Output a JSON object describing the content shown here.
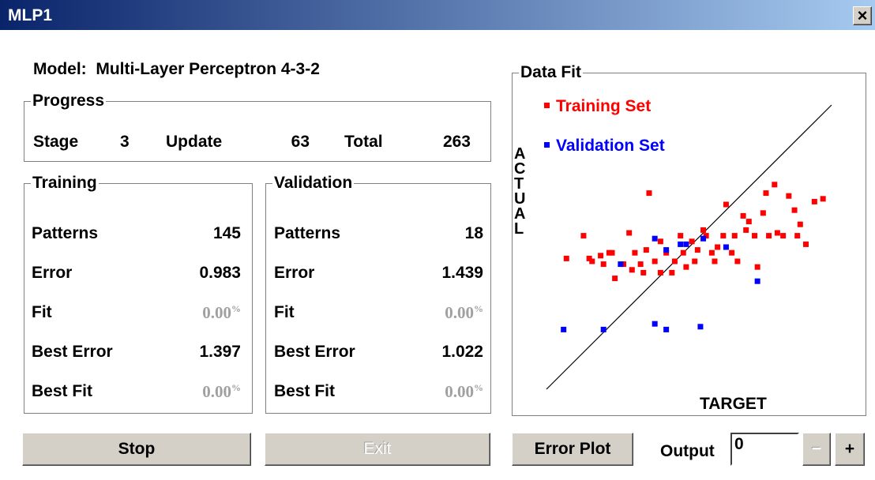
{
  "window": {
    "title": "MLP1",
    "close": "×"
  },
  "model": {
    "label": "Model:",
    "name": "Multi-Layer Perceptron 4-3-2"
  },
  "progress": {
    "title": "Progress",
    "stage_label": "Stage",
    "stage": "3",
    "update_label": "Update",
    "update": "63",
    "total_label": "Total",
    "total": "263"
  },
  "training": {
    "title": "Training",
    "rows": [
      [
        "Patterns",
        "145"
      ],
      [
        "Error",
        "0.983"
      ],
      [
        "Fit",
        "0.00",
        "%"
      ],
      [
        "Best Error",
        "1.397"
      ],
      [
        "Best Fit",
        "0.00",
        "%"
      ]
    ]
  },
  "validation": {
    "title": "Validation",
    "rows": [
      [
        "Patterns",
        "18"
      ],
      [
        "Error",
        "1.439"
      ],
      [
        "Fit",
        "0.00",
        "%"
      ],
      [
        "Best Error",
        "1.022"
      ],
      [
        "Best Fit",
        "0.00",
        "%"
      ]
    ]
  },
  "chart_data": {
    "type": "scatter",
    "title": "Data Fit",
    "x_label": "TARGET",
    "y_label": "ACTUAL",
    "xlim": [
      0,
      100
    ],
    "ylim": [
      0,
      100
    ],
    "series": [
      {
        "name": "Training Set",
        "color": "#ff0000",
        "x": [
          7,
          13,
          15,
          16,
          19,
          20,
          22,
          23,
          24,
          27,
          29,
          30,
          31,
          33,
          34,
          35,
          36,
          38,
          40,
          40,
          42,
          44,
          45,
          47,
          48,
          49,
          51,
          52,
          53,
          55,
          56,
          58,
          59,
          60,
          62,
          63,
          65,
          66,
          67,
          69,
          70,
          71,
          73,
          74,
          76,
          77,
          78,
          80,
          81,
          83,
          85,
          87,
          88,
          89,
          91,
          94,
          97
        ],
        "values": [
          46,
          54,
          46,
          45,
          47,
          44,
          48,
          48,
          39,
          44,
          55,
          42,
          48,
          44,
          41,
          49,
          69,
          45,
          41,
          52,
          48,
          41,
          45,
          54,
          48,
          43,
          52,
          45,
          49,
          56,
          54,
          48,
          45,
          50,
          54,
          65,
          48,
          54,
          45,
          61,
          56,
          59,
          54,
          43,
          62,
          69,
          54,
          72,
          55,
          54,
          68,
          63,
          54,
          58,
          51,
          66,
          67
        ]
      },
      {
        "name": "Validation Set",
        "color": "#0000ff",
        "x": [
          6,
          20,
          26,
          38,
          38,
          42,
          42,
          47,
          49,
          55,
          54,
          63,
          74
        ],
        "values": [
          21,
          21,
          44,
          53,
          23,
          21,
          49,
          51,
          51,
          53,
          22,
          50,
          38
        ]
      }
    ]
  },
  "buttons": {
    "stop": "Stop",
    "exit": "Exit",
    "error_plot": "Error Plot",
    "output_label": "Output",
    "output_value": "0",
    "minus": "−",
    "plus": "+"
  }
}
